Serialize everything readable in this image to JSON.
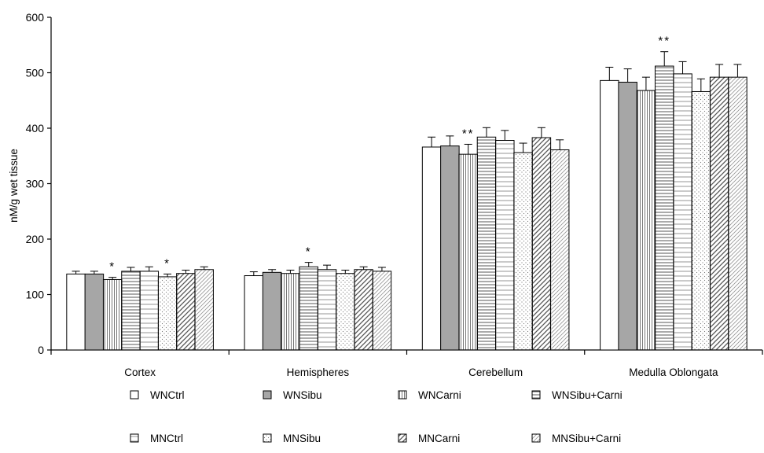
{
  "chart_data": {
    "type": "bar",
    "title": "",
    "xlabel": "",
    "ylabel": "nM/g wet tissue",
    "ylim": [
      0,
      600
    ],
    "yticks": [
      0,
      100,
      200,
      300,
      400,
      500,
      600
    ],
    "grid": false,
    "legend_position": "bottom",
    "categories": [
      "Cortex",
      "Hemispheres",
      "Cerebellum",
      "Medulla Oblongata"
    ],
    "series": [
      {
        "name": "WNCtrl",
        "values": [
          137,
          134,
          366,
          486
        ],
        "errors": [
          5,
          7,
          18,
          24
        ],
        "pattern": "white"
      },
      {
        "name": "WNSibu",
        "values": [
          137,
          140,
          368,
          483
        ],
        "errors": [
          5,
          5,
          18,
          24
        ],
        "pattern": "gray"
      },
      {
        "name": "WNCarni",
        "values": [
          127,
          138,
          353,
          468
        ],
        "errors": [
          4,
          6,
          18,
          24
        ],
        "pattern": "vlines"
      },
      {
        "name": "WNSibu+Carni",
        "values": [
          142,
          150,
          384,
          512
        ],
        "errors": [
          7,
          8,
          17,
          26
        ],
        "pattern": "hlines"
      },
      {
        "name": "MNCtrl",
        "values": [
          142,
          145,
          378,
          498
        ],
        "errors": [
          8,
          8,
          18,
          22
        ],
        "pattern": "hlines-fine"
      },
      {
        "name": "MNSibu",
        "values": [
          132,
          138,
          356,
          466
        ],
        "errors": [
          5,
          6,
          17,
          23
        ],
        "pattern": "dots"
      },
      {
        "name": "MNCarni",
        "values": [
          138,
          145,
          383,
          492
        ],
        "errors": [
          6,
          5,
          18,
          23
        ],
        "pattern": "diag"
      },
      {
        "name": "MNSibu+Carni",
        "values": [
          145,
          142,
          361,
          492
        ],
        "errors": [
          5,
          7,
          18,
          23
        ],
        "pattern": "diag-light"
      }
    ],
    "annotations": [
      {
        "text": "*",
        "category": "Cortex",
        "series": "WNCarni"
      },
      {
        "text": "*",
        "category": "Cortex",
        "series": "MNSibu"
      },
      {
        "text": "*",
        "category": "Hemispheres",
        "series": "WNSibu+Carni"
      },
      {
        "text": "**",
        "category": "Cerebellum",
        "series": "WNCarni"
      },
      {
        "text": "**",
        "category": "Medulla Oblongata",
        "series": "WNSibu+Carni"
      }
    ]
  },
  "colors": {
    "axis": "#000000",
    "bar_stroke": "#000000",
    "gray_fill": "#a6a6a6",
    "pattern_line": "#555555",
    "pattern_light": "#8a8a8a"
  }
}
